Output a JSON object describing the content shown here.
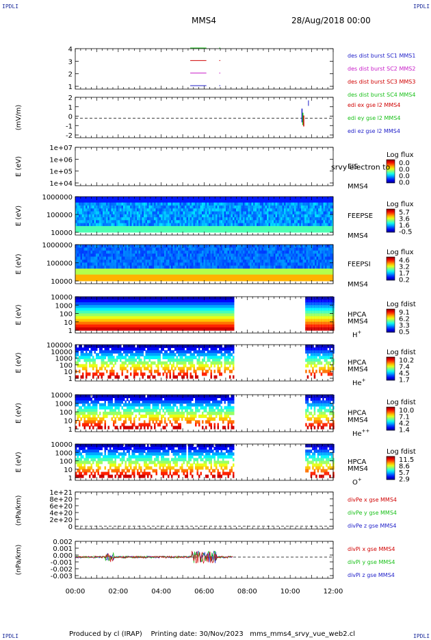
{
  "corners": {
    "tl": "IPDLI",
    "tr": "IPDLI",
    "bl": "IPDLI",
    "br": "IPDLI"
  },
  "header": {
    "spacecraft": "MMS4",
    "date": "28/Aug/2018 00:00"
  },
  "footer": {
    "produced_by": "Produced by cl (IRAP)",
    "printing_date": "Printing date: 30/Nov/2023",
    "file": "mms_mms4_srvy_vue_web2.cl"
  },
  "colors": {
    "axis": "#000000",
    "mms1": "#1c1cc8",
    "mms2": "#c81cc8",
    "mms3": "#d00000",
    "mms4": "#18c018",
    "red": "#d00000",
    "green": "#18c018",
    "blue": "#1c1cc8"
  },
  "chart_data": [
    {
      "type": "line",
      "id": "burst",
      "yticks": [
        "4",
        "3",
        "2",
        "1"
      ],
      "legend": [
        {
          "text": "des dist burst SC1 MMS1",
          "color": "#1c1cc8"
        },
        {
          "text": "des dist burst SC2 MMS2",
          "color": "#c81cc8"
        },
        {
          "text": "des dist burst SC3 MMS3",
          "color": "#d00000"
        },
        {
          "text": "des dist burst SC4 MMS4",
          "color": "#18c018"
        }
      ]
    },
    {
      "type": "line",
      "id": "edi",
      "ylabel": "(mV/m)",
      "yticks": [
        "2",
        "1",
        "0",
        "-1",
        "-2"
      ],
      "legend": [
        {
          "text": "edi ex gse l2 MMS4",
          "color": "#d00000"
        },
        {
          "text": "edi ey gse l2 MMS4",
          "color": "#18c018"
        },
        {
          "text": "edi ez gse l2 MMS4",
          "color": "#1c1cc8"
        }
      ]
    },
    {
      "type": "heatmap",
      "id": "eis",
      "ylabel": "E (eV)",
      "yticks": [
        "1e+07",
        "1e+06",
        "1e+05",
        "1e+04"
      ],
      "instrument": "EIS",
      "sc": "MMS4",
      "overlay": "srvy electron to",
      "cbtitle": "Log flux",
      "cbticks": [
        "0.0",
        "0.0",
        "0.0",
        "0.0"
      ]
    },
    {
      "type": "heatmap",
      "id": "feepse",
      "ylabel": "E (eV)",
      "yticks": [
        "1000000",
        "100000",
        "10000"
      ],
      "instrument": "FEEPSE",
      "sc": "MMS4",
      "cbtitle": "Log flux",
      "cbticks": [
        "5.7",
        "3.6",
        "1.6",
        "-0.5"
      ]
    },
    {
      "type": "heatmap",
      "id": "feepsi",
      "ylabel": "E (eV)",
      "yticks": [
        "1000000",
        "100000",
        "10000"
      ],
      "instrument": "FEEPSI",
      "sc": "MMS4",
      "cbtitle": "Log flux",
      "cbticks": [
        "4.6",
        "3.2",
        "1.7",
        "0.2"
      ]
    },
    {
      "type": "heatmap",
      "id": "hpca_h",
      "ylabel": "E (eV)",
      "yticks": [
        "10000",
        "1000",
        "100",
        "10",
        "1"
      ],
      "instrument": "HPCA",
      "sc": "MMS4",
      "species": "H",
      "charge": "+",
      "cbtitle": "Log fdist",
      "cbticks": [
        "9.1",
        "6.2",
        "3.3",
        "0.5"
      ]
    },
    {
      "type": "heatmap",
      "id": "hpca_he",
      "ylabel": "E (eV)",
      "yticks": [
        "100000",
        "10000",
        "1000",
        "100",
        "10",
        "1"
      ],
      "instrument": "HPCA",
      "sc": "MMS4",
      "species": "He",
      "charge": "+",
      "cbtitle": "Log fdist",
      "cbticks": [
        "10.2",
        "7.4",
        "4.5",
        "1.7"
      ]
    },
    {
      "type": "heatmap",
      "id": "hpca_hepp",
      "ylabel": "E (eV)",
      "yticks": [
        "10000",
        "1000",
        "100",
        "10",
        "1"
      ],
      "instrument": "HPCA",
      "sc": "MMS4",
      "species": "He",
      "charge": "++",
      "cbtitle": "Log fdist",
      "cbticks": [
        "10.0",
        "7.1",
        "4.2",
        "1.4"
      ]
    },
    {
      "type": "heatmap",
      "id": "hpca_o",
      "ylabel": "E (eV)",
      "yticks": [
        "10000",
        "1000",
        "100",
        "10",
        "1"
      ],
      "instrument": "HPCA",
      "sc": "MMS4",
      "species": "O",
      "charge": "+",
      "cbtitle": "Log fdist",
      "cbticks": [
        "11.5",
        "8.6",
        "5.7",
        "2.9"
      ]
    },
    {
      "type": "line",
      "id": "divpe",
      "ylabel": "(nPa/km)",
      "yticks": [
        "1e+21",
        "8e+20",
        "6e+20",
        "4e+20",
        "2e+20",
        "0"
      ],
      "legend": [
        {
          "text": "divPe x gse MMS4",
          "color": "#d00000"
        },
        {
          "text": "divPe y gse MMS4",
          "color": "#18c018"
        },
        {
          "text": "divPe z gse MMS4",
          "color": "#1c1cc8"
        }
      ]
    },
    {
      "type": "line",
      "id": "divpi",
      "ylabel": "(nPa/km)",
      "yticks": [
        "0.002",
        "0.001",
        "0.000",
        "-0.001",
        "-0.002",
        "-0.003"
      ],
      "legend": [
        {
          "text": "divPi x gse MMS4",
          "color": "#d00000"
        },
        {
          "text": "divPi y gse MMS4",
          "color": "#18c018"
        },
        {
          "text": "divPi z gse MMS4",
          "color": "#1c1cc8"
        }
      ]
    }
  ],
  "time_axis": {
    "ticks": [
      "00:00",
      "02:00",
      "04:00",
      "06:00",
      "08:00",
      "10:00",
      "12:00"
    ]
  }
}
